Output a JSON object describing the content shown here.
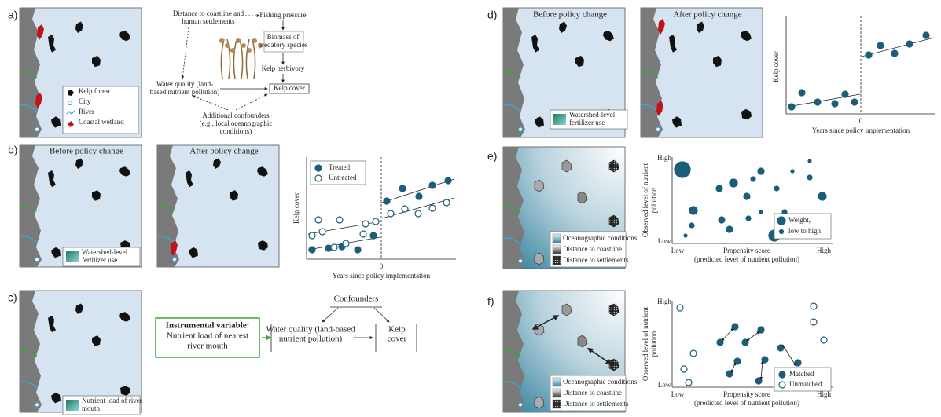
{
  "a": {
    "label": "a)",
    "legend": [
      "Kelp forest",
      "City",
      "River",
      "Coastal wetland"
    ],
    "nodes": {
      "distance": [
        "Distance to coastline and",
        "human settlements"
      ],
      "fishing": [
        "Fishing pressure"
      ],
      "biomass": [
        "Biomass of",
        "predatory species"
      ],
      "herbivory": [
        "Kelp herbivory"
      ],
      "water": [
        "Water quality (land-",
        "based nutrient pollution)"
      ],
      "cover": [
        "Kelp cover"
      ],
      "confounders": [
        "Additional confounders",
        "(e.g., local oceanographic",
        "conditions)"
      ]
    }
  },
  "b": {
    "label": "b)",
    "before": "Before policy change",
    "after": "After policy change",
    "swatch": [
      "Watershed-level",
      "fertilizer use"
    ],
    "legend": [
      "Treated",
      "Untreated"
    ],
    "ylabel": "Kelp cover",
    "xtick": "0",
    "xlabel": "Years since policy implementation"
  },
  "c": {
    "label": "c)",
    "swatch": [
      "Nutrient load of river",
      "mouth"
    ],
    "iv": [
      "Instrumental variable:",
      "Nutrient load of nearest",
      "river mouth"
    ],
    "confounders": "Confounders",
    "water": [
      "Water quality (land-based",
      "nutrient pollution)"
    ],
    "cover": [
      "Kelp",
      "cover"
    ]
  },
  "d": {
    "label": "d)",
    "before": "Before policy change",
    "after": "After policy change",
    "swatch": [
      "Watershed-level",
      "fertilizer use"
    ],
    "ylabel": "Kelp cover",
    "xtick": "0",
    "xlabel": "Years since policy implementation"
  },
  "e": {
    "label": "e)",
    "legend": [
      "Oceanographic conditions",
      "Distance to coastline",
      "Distance to settlements"
    ],
    "yhigh": "High",
    "ylow": "Low",
    "xlow": "Low",
    "xhigh": "High",
    "ylabel": [
      "Observed level of nutrient",
      "pollution"
    ],
    "xlabel": [
      "Propensity score",
      "(predicted level of nutrient pollution)"
    ],
    "weight": [
      "Weight,",
      "low to high"
    ]
  },
  "f": {
    "label": "f)",
    "legend": [
      "Oceanographic conditions",
      "Distance to coastline",
      "Distance to settlements"
    ],
    "yhigh": "High",
    "ylow": "Low",
    "xlow": "Low",
    "xhigh": "High",
    "ylabel": [
      "Observed level of nutrient",
      "pollution"
    ],
    "xlabel": [
      "Propensity score",
      "(predicted level of nutrient pollution)"
    ],
    "matched": "Matched",
    "unmatched": "Unmatched"
  }
}
